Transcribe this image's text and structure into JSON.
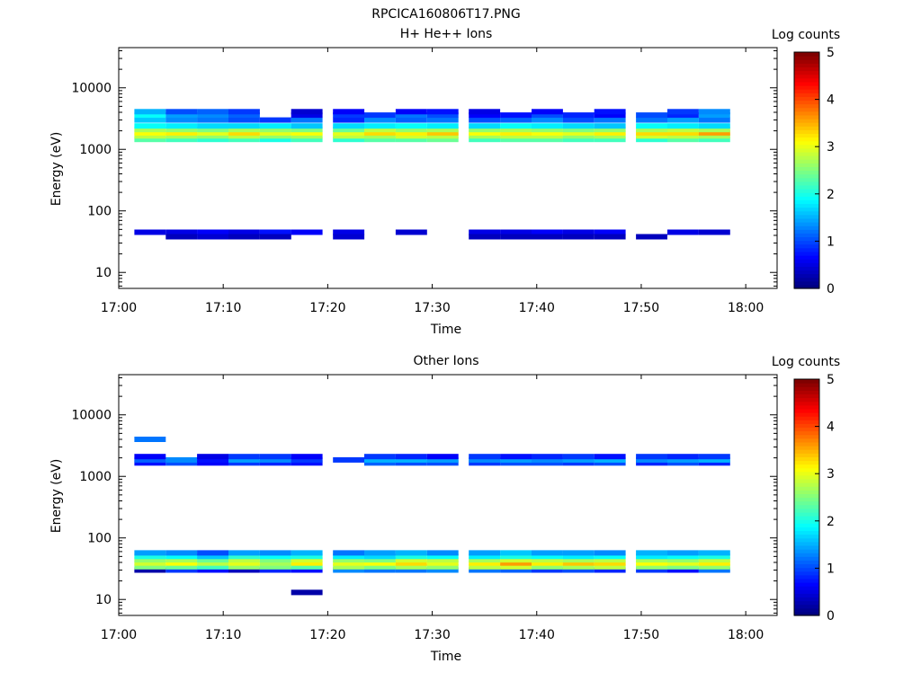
{
  "figure": {
    "title": "RPCICA160806T17.PNG"
  },
  "colorscale": {
    "label": "Log counts",
    "ticks": [
      "0",
      "1",
      "2",
      "3",
      "4",
      "5"
    ],
    "range": [
      0,
      5
    ]
  },
  "chart_data": [
    {
      "type": "heatmap",
      "title": "H+ He++ Ions",
      "xlabel": "Time",
      "ylabel": "Energy (eV)",
      "x_ticks": [
        "17:00",
        "17:10",
        "17:20",
        "17:30",
        "17:40",
        "17:50",
        "18:00"
      ],
      "y_ticks": [
        "10",
        "100",
        "1000",
        "10000"
      ],
      "y_scale": "log",
      "ylim": [
        5.5,
        45000
      ],
      "xlim": [
        "17:00",
        "18:03"
      ],
      "time_bins": [
        "17:03",
        "17:06",
        "17:09",
        "17:12",
        "17:15",
        "17:18",
        "17:22",
        "17:25",
        "17:28",
        "17:31",
        "17:35",
        "17:38",
        "17:41",
        "17:44",
        "17:47",
        "17:51",
        "17:54",
        "17:57"
      ],
      "bands": [
        {
          "energy_eV": 1450,
          "values": [
            2.3,
            2.2,
            2.1,
            2.2,
            2.0,
            2.2,
            2.1,
            2.3,
            2.3,
            2.4,
            2.2,
            2.3,
            2.3,
            2.2,
            2.2,
            2.1,
            2.3,
            2.2
          ]
        },
        {
          "energy_eV": 1650,
          "values": [
            2.8,
            2.7,
            2.6,
            2.8,
            2.6,
            2.7,
            2.8,
            2.7,
            2.9,
            2.8,
            2.7,
            2.8,
            2.8,
            2.6,
            2.7,
            2.9,
            2.8,
            2.7
          ]
        },
        {
          "energy_eV": 1850,
          "values": [
            3.1,
            3.2,
            3.0,
            3.3,
            3.0,
            3.1,
            3.0,
            3.3,
            3.2,
            3.4,
            3.1,
            3.2,
            3.1,
            3.0,
            3.2,
            3.3,
            3.3,
            3.6
          ]
        },
        {
          "energy_eV": 2100,
          "values": [
            2.7,
            2.6,
            2.5,
            2.7,
            2.6,
            2.5,
            2.4,
            2.8,
            2.6,
            2.7,
            2.6,
            2.7,
            2.6,
            2.5,
            2.6,
            2.7,
            2.8,
            2.7
          ]
        },
        {
          "energy_eV": 2400,
          "values": [
            1.9,
            1.8,
            1.7,
            1.7,
            1.8,
            1.6,
            1.7,
            1.8,
            1.9,
            1.8,
            1.7,
            1.9,
            1.8,
            1.7,
            1.6,
            1.9,
            1.8,
            1.7
          ]
        },
        {
          "energy_eV": 3000,
          "values": [
            1.6,
            1.3,
            1.2,
            1.0,
            0.9,
            1.2,
            0.8,
            1.3,
            1.1,
            1.2,
            1.0,
            1.1,
            1.3,
            1.0,
            1.2,
            1.2,
            1.4,
            1.2
          ]
        },
        {
          "energy_eV": 3600,
          "values": [
            1.9,
            1.4,
            1.3,
            1.1,
            0.0,
            0.5,
            0.9,
            0.9,
            1.2,
            1.0,
            0.6,
            0.7,
            1.0,
            0.8,
            0.6,
            1.0,
            0.8,
            1.4
          ]
        },
        {
          "energy_eV": 4100,
          "values": [
            1.5,
            1.0,
            1.1,
            0.9,
            0.0,
            0.4,
            0.6,
            0.0,
            0.6,
            0.7,
            0.5,
            0.0,
            0.6,
            0.0,
            0.7,
            0.0,
            0.9,
            1.3
          ]
        },
        {
          "energy_eV": 45,
          "values": [
            0.5,
            0.5,
            0.6,
            0.5,
            0.7,
            0.6,
            0.5,
            0.0,
            0.4,
            0.0,
            0.5,
            0.5,
            0.6,
            0.5,
            0.6,
            0.0,
            0.5,
            0.4
          ]
        },
        {
          "energy_eV": 38,
          "values": [
            0.0,
            0.3,
            0.4,
            0.3,
            0.3,
            0.0,
            0.4,
            0.0,
            0.0,
            0.0,
            0.3,
            0.3,
            0.3,
            0.3,
            0.3,
            0.3,
            0.0,
            0.0
          ]
        }
      ]
    },
    {
      "type": "heatmap",
      "title": "Other Ions",
      "xlabel": "Time",
      "ylabel": "Energy (eV)",
      "x_ticks": [
        "17:00",
        "17:10",
        "17:20",
        "17:30",
        "17:40",
        "17:50",
        "18:00"
      ],
      "y_ticks": [
        "10",
        "100",
        "1000",
        "10000"
      ],
      "y_scale": "log",
      "ylim": [
        5.5,
        45000
      ],
      "xlim": [
        "17:00",
        "18:03"
      ],
      "time_bins": [
        "17:03",
        "17:06",
        "17:09",
        "17:12",
        "17:15",
        "17:18",
        "17:22",
        "17:25",
        "17:28",
        "17:31",
        "17:35",
        "17:38",
        "17:41",
        "17:44",
        "17:47",
        "17:51",
        "17:54",
        "17:57"
      ],
      "bands": [
        {
          "energy_eV": 30,
          "values": [
            0.2,
            0.9,
            0.7,
            0.3,
            0.8,
            0.7,
            1.3,
            1.2,
            1.2,
            1.3,
            1.2,
            1.1,
            0.9,
            1.0,
            0.8,
            0.9,
            0.7,
            1.2
          ]
        },
        {
          "energy_eV": 34,
          "values": [
            2.5,
            2.4,
            2.2,
            2.6,
            2.5,
            2.3,
            2.7,
            2.5,
            2.7,
            2.6,
            2.8,
            2.9,
            2.6,
            2.7,
            2.8,
            2.6,
            2.5,
            2.6
          ]
        },
        {
          "energy_eV": 39,
          "values": [
            2.9,
            3.1,
            2.8,
            3.0,
            2.7,
            3.2,
            3.0,
            3.1,
            3.3,
            3.0,
            3.2,
            3.6,
            3.2,
            3.4,
            3.3,
            3.1,
            3.0,
            3.2
          ]
        },
        {
          "energy_eV": 44,
          "values": [
            2.6,
            2.7,
            2.4,
            2.8,
            2.5,
            2.9,
            2.6,
            2.5,
            2.9,
            2.8,
            2.7,
            2.9,
            2.8,
            2.7,
            2.8,
            2.7,
            2.6,
            2.8
          ]
        },
        {
          "energy_eV": 50,
          "values": [
            2.0,
            1.9,
            1.6,
            2.1,
            1.9,
            2.0,
            1.8,
            1.7,
            2.0,
            1.9,
            1.8,
            2.0,
            1.9,
            1.8,
            1.9,
            1.8,
            1.9,
            2.0
          ]
        },
        {
          "energy_eV": 57,
          "values": [
            1.4,
            1.3,
            1.0,
            1.4,
            1.3,
            1.5,
            1.2,
            1.4,
            1.5,
            1.3,
            1.4,
            1.6,
            1.4,
            1.4,
            1.3,
            1.5,
            1.4,
            1.5
          ]
        },
        {
          "energy_eV": 1650,
          "values": [
            0.7,
            1.0,
            0.6,
            0.9,
            0.8,
            0.7,
            0.0,
            1.1,
            1.0,
            1.0,
            0.9,
            1.0,
            1.0,
            0.9,
            1.0,
            0.8,
            1.0,
            0.8
          ]
        },
        {
          "energy_eV": 1850,
          "values": [
            1.1,
            1.3,
            0.7,
            1.4,
            1.3,
            0.9,
            0.9,
            1.5,
            1.5,
            1.4,
            1.3,
            1.4,
            1.3,
            1.4,
            1.5,
            1.3,
            1.4,
            1.5
          ]
        },
        {
          "energy_eV": 2100,
          "values": [
            0.6,
            0.0,
            0.5,
            0.9,
            0.9,
            0.6,
            0.0,
            0.9,
            0.8,
            0.6,
            0.9,
            0.7,
            0.8,
            0.9,
            0.7,
            0.9,
            0.8,
            0.9
          ]
        },
        {
          "energy_eV": 4000,
          "values": [
            1.2,
            0.0,
            0.0,
            0.0,
            0.0,
            0.0,
            0.0,
            0.0,
            0.0,
            0.0,
            0.0,
            0.0,
            0.0,
            0.0,
            0.0,
            0.0,
            0.0,
            0.0
          ]
        },
        {
          "energy_eV": 13,
          "values": [
            0.0,
            0.0,
            0.0,
            0.0,
            0.0,
            0.2,
            0.0,
            0.0,
            0.0,
            0.0,
            0.0,
            0.0,
            0.0,
            0.0,
            0.0,
            0.0,
            0.0,
            0.0
          ]
        }
      ]
    }
  ]
}
